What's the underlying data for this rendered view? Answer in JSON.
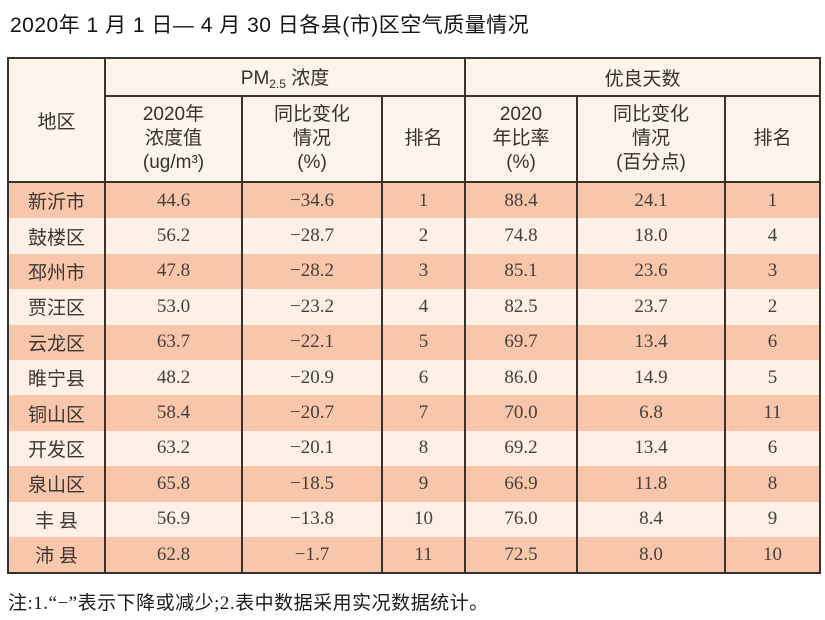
{
  "title": "2020年 1 月 1 日— 4 月 30 日各县(市)区空气质量情况",
  "note": "注:1.“−”表示下降或减少;2.表中数据采用实况数据统计。",
  "colors": {
    "row_salmon": "#f8c7ab",
    "row_light": "#fcf0e7",
    "header_bg": "#fdf4ec",
    "border": "#37322d"
  },
  "table": {
    "header": {
      "region": "地区",
      "pm_group": {
        "base": "PM",
        "sub": "2.5",
        "rest": " 浓度"
      },
      "good_group": "优良天数",
      "pm_value": "2020年\n浓度值\n(ug/m³)",
      "pm_change": "同比变化\n情况\n(%)",
      "pm_rank": "排名",
      "good_ratio": "2020\n年比率\n(%)",
      "good_change": "同比变化\n情况\n(百分点)",
      "good_rank": "排名"
    },
    "rows": [
      {
        "region": "新沂市",
        "pm_value": "44.6",
        "pm_change": "−34.6",
        "pm_rank": "1",
        "good_ratio": "88.4",
        "good_change": "24.1",
        "good_rank": "1"
      },
      {
        "region": "鼓楼区",
        "pm_value": "56.2",
        "pm_change": "−28.7",
        "pm_rank": "2",
        "good_ratio": "74.8",
        "good_change": "18.0",
        "good_rank": "4"
      },
      {
        "region": "邳州市",
        "pm_value": "47.8",
        "pm_change": "−28.2",
        "pm_rank": "3",
        "good_ratio": "85.1",
        "good_change": "23.6",
        "good_rank": "3"
      },
      {
        "region": "贾汪区",
        "pm_value": "53.0",
        "pm_change": "−23.2",
        "pm_rank": "4",
        "good_ratio": "82.5",
        "good_change": "23.7",
        "good_rank": "2"
      },
      {
        "region": "云龙区",
        "pm_value": "63.7",
        "pm_change": "−22.1",
        "pm_rank": "5",
        "good_ratio": "69.7",
        "good_change": "13.4",
        "good_rank": "6"
      },
      {
        "region": "睢宁县",
        "pm_value": "48.2",
        "pm_change": "−20.9",
        "pm_rank": "6",
        "good_ratio": "86.0",
        "good_change": "14.9",
        "good_rank": "5"
      },
      {
        "region": "铜山区",
        "pm_value": "58.4",
        "pm_change": "−20.7",
        "pm_rank": "7",
        "good_ratio": "70.0",
        "good_change": "6.8",
        "good_rank": "11"
      },
      {
        "region": "开发区",
        "pm_value": "63.2",
        "pm_change": "−20.1",
        "pm_rank": "8",
        "good_ratio": "69.2",
        "good_change": "13.4",
        "good_rank": "6"
      },
      {
        "region": "泉山区",
        "pm_value": "65.8",
        "pm_change": "−18.5",
        "pm_rank": "9",
        "good_ratio": "66.9",
        "good_change": "11.8",
        "good_rank": "8"
      },
      {
        "region": "丰 县",
        "pm_value": "56.9",
        "pm_change": "−13.8",
        "pm_rank": "10",
        "good_ratio": "76.0",
        "good_change": "8.4",
        "good_rank": "9"
      },
      {
        "region": "沛 县",
        "pm_value": "62.8",
        "pm_change": "−1.7",
        "pm_rank": "11",
        "good_ratio": "72.5",
        "good_change": "8.0",
        "good_rank": "10"
      }
    ]
  }
}
